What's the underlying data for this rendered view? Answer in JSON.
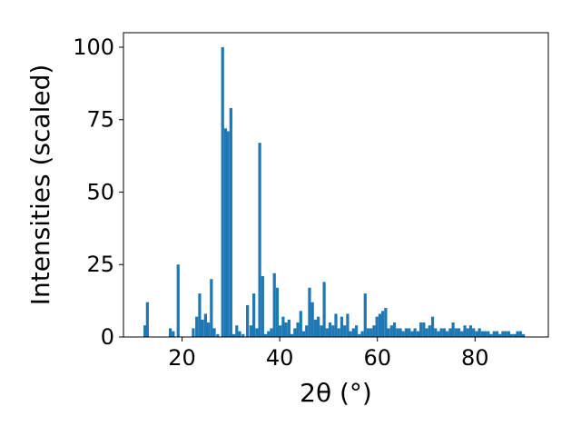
{
  "chart_data": {
    "type": "bar",
    "xlabel": "2θ (°)",
    "ylabel": "Intensities (scaled)",
    "xlim": [
      8,
      95
    ],
    "ylim": [
      0,
      105
    ],
    "xticks": [
      20,
      40,
      60,
      80
    ],
    "yticks": [
      0,
      25,
      50,
      75,
      100
    ],
    "bar_width": 0.6,
    "bar_color": "#1f77b4",
    "grid": false,
    "legend": "none",
    "x": [
      12.4,
      12.9,
      17.6,
      18.2,
      19.2,
      22.3,
      23.0,
      23.6,
      24.2,
      24.8,
      25.4,
      26.0,
      26.6,
      27.3,
      28.3,
      28.9,
      29.4,
      30.0,
      30.6,
      31.2,
      31.8,
      32.5,
      33.4,
      34.1,
      34.7,
      35.3,
      35.9,
      36.5,
      37.1,
      37.7,
      38.3,
      38.9,
      39.5,
      40.1,
      40.7,
      41.3,
      41.9,
      42.5,
      43.1,
      43.7,
      44.3,
      44.9,
      45.5,
      46.1,
      46.7,
      47.3,
      47.9,
      48.5,
      49.1,
      49.7,
      50.3,
      50.9,
      51.5,
      52.1,
      52.7,
      53.3,
      53.9,
      54.5,
      55.1,
      55.7,
      56.3,
      56.9,
      57.5,
      58.1,
      58.7,
      59.3,
      59.9,
      60.5,
      61.1,
      61.7,
      62.3,
      62.9,
      63.5,
      64.1,
      64.7,
      65.3,
      65.9,
      66.5,
      67.1,
      67.7,
      68.3,
      68.9,
      69.5,
      70.1,
      70.7,
      71.3,
      71.9,
      72.5,
      73.1,
      73.7,
      74.3,
      74.9,
      75.5,
      76.1,
      76.7,
      77.3,
      77.9,
      78.5,
      79.1,
      79.7,
      80.3,
      80.9,
      81.5,
      82.1,
      82.7,
      83.3,
      83.9,
      84.5,
      85.1,
      85.7,
      86.3,
      86.9,
      87.5,
      88.1,
      88.7,
      89.3,
      89.9
    ],
    "values": [
      4,
      12,
      3,
      2,
      25,
      3,
      7,
      15,
      6,
      8,
      5,
      20,
      3,
      1,
      100,
      72,
      71,
      79,
      1,
      4,
      2,
      1,
      11,
      4,
      15,
      3,
      67,
      21,
      1,
      2,
      3,
      22,
      17,
      4,
      7,
      5,
      6,
      1,
      3,
      5,
      9,
      2,
      4,
      17,
      12,
      6,
      7,
      4,
      19,
      3,
      5,
      4,
      8,
      3,
      7,
      4,
      8,
      2,
      3,
      4,
      1,
      2,
      15,
      3,
      3,
      4,
      7,
      8,
      9,
      10,
      3,
      4,
      5,
      3,
      3,
      2,
      3,
      3,
      2,
      3,
      2,
      5,
      5,
      3,
      4,
      7,
      3,
      2,
      3,
      3,
      2,
      3,
      5,
      3,
      3,
      2,
      4,
      3,
      4,
      3,
      2,
      3,
      2,
      2,
      2,
      1,
      2,
      2,
      1,
      2,
      2,
      2,
      1,
      1,
      2,
      2,
      1
    ]
  }
}
